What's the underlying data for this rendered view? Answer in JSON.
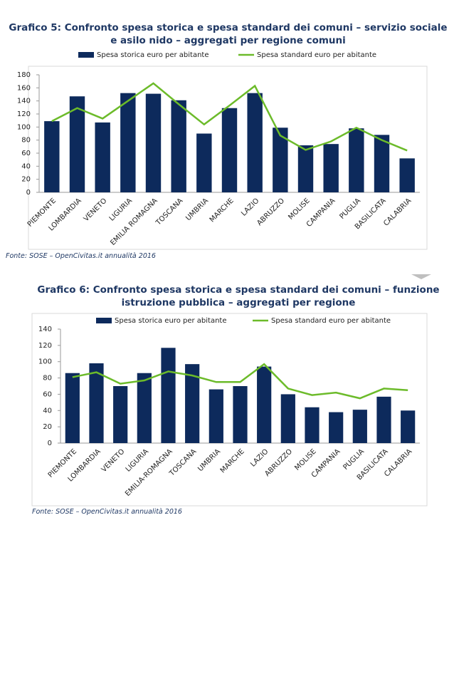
{
  "chart_data": [
    {
      "type": "combo",
      "title": "Grafico 5: Confronto spesa storica e spesa standard dei comuni – servizio sociale e asilo nido – aggregati per regione comuni",
      "source": "Fonte: SOSE – OpenCivitas.it annualità 2016",
      "categories": [
        "PIEMONTE",
        "LOMBARDIA",
        "VENETO",
        "LIGURIA",
        "EMILIA ROMAGNA",
        "TOSCANA",
        "UMBRIA",
        "MARCHE",
        "LAZIO",
        "ABRUZZO",
        "MOLISE",
        "CAMPANIA",
        "PUGLIA",
        "BASILICATA",
        "CALABRIA"
      ],
      "series": [
        {
          "name": "Spesa storica euro per abitante",
          "type": "bar",
          "color": "#0d2a5c",
          "values": [
            109,
            147,
            107,
            152,
            151,
            141,
            90,
            129,
            152,
            99,
            72,
            74,
            98,
            88,
            52
          ]
        },
        {
          "name": "Spesa standard euro per abitante",
          "type": "line",
          "color": "#6cbb2a",
          "values": [
            109,
            129,
            113,
            140,
            167,
            135,
            104,
            133,
            163,
            87,
            65,
            78,
            99,
            80,
            64
          ]
        }
      ],
      "ylim": [
        0,
        180
      ],
      "yticks": [
        0,
        20,
        40,
        60,
        80,
        100,
        120,
        140,
        160,
        180
      ],
      "grid": false
    },
    {
      "type": "combo",
      "title": "Grafico 6: Confronto spesa storica e spesa standard dei comuni – funzione istruzione pubblica – aggregati per regione",
      "source": "Fonte: SOSE – OpenCivitas.it annualità 2016",
      "categories": [
        "PIEMONTE",
        "LOMBARDIA",
        "VENETO",
        "LIGURIA",
        "EMILIA-ROMAGNA",
        "TOSCANA",
        "UMBRIA",
        "MARCHE",
        "LAZIO",
        "ABRUZZO",
        "MOLISE",
        "CAMPANIA",
        "PUGLIA",
        "BASILICATA",
        "CALABRIA"
      ],
      "series": [
        {
          "name": "Spesa storica euro per abitante",
          "type": "bar",
          "color": "#0d2a5c",
          "values": [
            86,
            98,
            70,
            86,
            117,
            97,
            66,
            70,
            94,
            60,
            44,
            38,
            41,
            57,
            40
          ]
        },
        {
          "name": "Spesa standard euro per abitante",
          "type": "line",
          "color": "#6cbb2a",
          "values": [
            81,
            87,
            73,
            77,
            88,
            83,
            75,
            75,
            97,
            67,
            59,
            62,
            55,
            67,
            65
          ]
        }
      ],
      "ylim": [
        0,
        140
      ],
      "yticks": [
        0,
        20,
        40,
        60,
        80,
        100,
        120,
        140
      ],
      "grid": false
    }
  ]
}
